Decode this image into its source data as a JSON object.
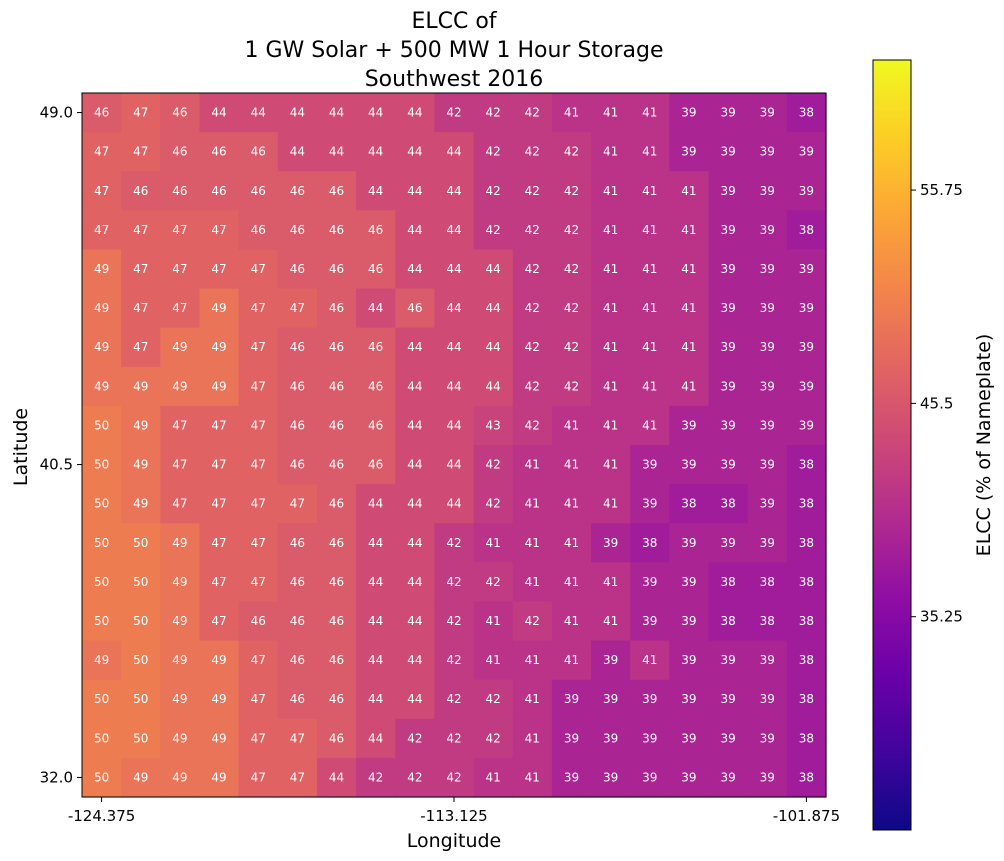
{
  "chart_data": {
    "type": "heatmap",
    "title": [
      "ELCC of",
      "1 GW Solar + 500 MW 1 Hour Storage",
      "Southwest 2016"
    ],
    "xlabel": "Longitude",
    "ylabel": "Latitude",
    "x_ticks": [
      "-124.375",
      "-113.125",
      "-101.875"
    ],
    "y_ticks": [
      "49.0",
      "40.5",
      "32.0"
    ],
    "colorbar": {
      "label": "ELCC (% of Nameplate)",
      "ticks": [
        "55.75",
        "45.5",
        "35.25"
      ],
      "tick_values": [
        55.75,
        45.5,
        35.25
      ],
      "vmin": 25.0,
      "vmax": 62.0,
      "colormap": "plasma"
    },
    "x_range": [
      -124.375,
      -101.875
    ],
    "y_range": [
      32.0,
      49.0
    ],
    "rows_top_to_bottom": [
      [
        46,
        47,
        46,
        44,
        44,
        44,
        44,
        44,
        44,
        42,
        42,
        42,
        41,
        41,
        41,
        39,
        39,
        39,
        38
      ],
      [
        47,
        47,
        46,
        46,
        46,
        44,
        44,
        44,
        44,
        44,
        42,
        42,
        42,
        41,
        41,
        39,
        39,
        39,
        39
      ],
      [
        47,
        46,
        46,
        46,
        46,
        46,
        46,
        44,
        44,
        44,
        42,
        42,
        42,
        41,
        41,
        41,
        39,
        39,
        39
      ],
      [
        47,
        47,
        47,
        47,
        46,
        46,
        46,
        46,
        44,
        44,
        42,
        42,
        42,
        41,
        41,
        41,
        39,
        39,
        38
      ],
      [
        49,
        47,
        47,
        47,
        47,
        46,
        46,
        46,
        44,
        44,
        44,
        42,
        42,
        41,
        41,
        41,
        39,
        39,
        39
      ],
      [
        49,
        47,
        47,
        49,
        47,
        47,
        46,
        44,
        46,
        44,
        44,
        42,
        42,
        41,
        41,
        41,
        39,
        39,
        39
      ],
      [
        49,
        47,
        49,
        49,
        47,
        46,
        46,
        46,
        44,
        44,
        44,
        42,
        42,
        41,
        41,
        41,
        39,
        39,
        39
      ],
      [
        49,
        49,
        49,
        49,
        47,
        46,
        46,
        46,
        44,
        44,
        44,
        42,
        42,
        41,
        41,
        41,
        39,
        39,
        39
      ],
      [
        50,
        49,
        47,
        47,
        47,
        46,
        46,
        46,
        44,
        44,
        43,
        42,
        41,
        41,
        41,
        39,
        39,
        39,
        39
      ],
      [
        50,
        49,
        47,
        47,
        47,
        46,
        46,
        46,
        44,
        44,
        42,
        41,
        41,
        41,
        39,
        39,
        39,
        39,
        38
      ],
      [
        50,
        49,
        47,
        47,
        47,
        47,
        46,
        44,
        44,
        44,
        42,
        41,
        41,
        41,
        39,
        38,
        38,
        39,
        38
      ],
      [
        50,
        50,
        49,
        47,
        47,
        46,
        46,
        44,
        44,
        42,
        41,
        41,
        41,
        39,
        38,
        39,
        39,
        39,
        38
      ],
      [
        50,
        50,
        49,
        47,
        47,
        46,
        46,
        44,
        44,
        42,
        42,
        41,
        41,
        41,
        39,
        39,
        38,
        38,
        38
      ],
      [
        50,
        50,
        49,
        47,
        46,
        46,
        46,
        44,
        44,
        42,
        41,
        42,
        41,
        41,
        39,
        39,
        38,
        38,
        38
      ],
      [
        49,
        50,
        49,
        49,
        47,
        46,
        46,
        44,
        44,
        42,
        41,
        41,
        41,
        39,
        41,
        39,
        39,
        39,
        38
      ],
      [
        50,
        50,
        49,
        49,
        47,
        46,
        46,
        44,
        44,
        42,
        42,
        41,
        39,
        39,
        39,
        39,
        39,
        39,
        38
      ],
      [
        50,
        50,
        49,
        49,
        47,
        47,
        46,
        44,
        42,
        42,
        42,
        41,
        39,
        39,
        39,
        39,
        39,
        39,
        38
      ],
      [
        50,
        49,
        49,
        49,
        47,
        47,
        44,
        42,
        42,
        42,
        41,
        41,
        39,
        39,
        39,
        39,
        39,
        39,
        38
      ]
    ]
  }
}
